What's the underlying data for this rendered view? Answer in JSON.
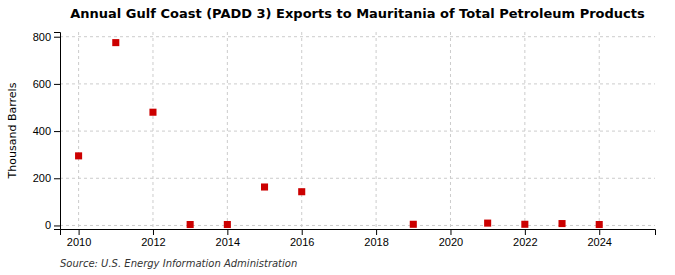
{
  "chart_data": {
    "type": "scatter",
    "title": "Annual Gulf Coast (PADD 3) Exports to Mauritania of Total Petroleum Products",
    "ylabel": "Thousand Barrels",
    "source": "Source: U.S. Energy Information Administration",
    "x": [
      2010,
      2011,
      2012,
      2013,
      2014,
      2015,
      2016,
      2019,
      2021,
      2022,
      2023,
      2024
    ],
    "values": [
      295,
      775,
      480,
      4,
      4,
      163,
      143,
      5,
      10,
      5,
      8,
      4
    ],
    "color": "#cc0000",
    "marker": "square",
    "xlim": [
      2009.5,
      2025.5
    ],
    "ylim": [
      -15,
      820
    ],
    "xticks": [
      2010,
      2012,
      2014,
      2016,
      2018,
      2020,
      2022,
      2024
    ],
    "yticks": [
      0,
      200,
      400,
      600,
      800
    ],
    "grid": true
  }
}
